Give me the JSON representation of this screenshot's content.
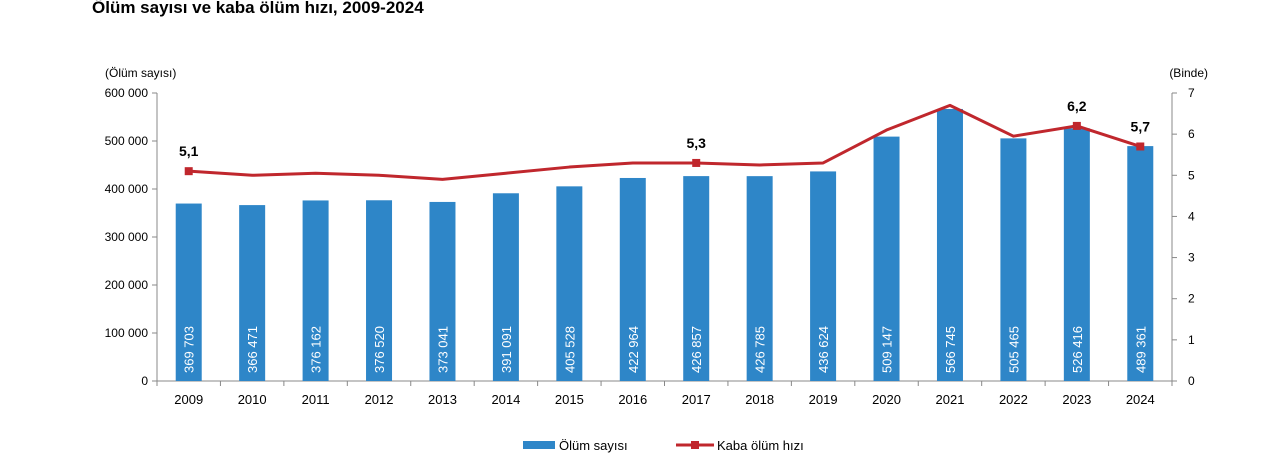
{
  "chart_data": {
    "type": "bar",
    "title": "Ölüm sayısı ve kaba ölüm hızı, 2009-2024",
    "categories": [
      "2009",
      "2010",
      "2011",
      "2012",
      "2013",
      "2014",
      "2015",
      "2016",
      "2017",
      "2018",
      "2019",
      "2020",
      "2021",
      "2022",
      "2023",
      "2024"
    ],
    "y_left": {
      "label": "(Ölüm sayısı)",
      "ylim": [
        0,
        600000
      ],
      "ticks": [
        {
          "value": 0,
          "label": "0"
        },
        {
          "value": 100000,
          "label": "100 000"
        },
        {
          "value": 200000,
          "label": "200 000"
        },
        {
          "value": 300000,
          "label": "300 000"
        },
        {
          "value": 400000,
          "label": "400 000"
        },
        {
          "value": 500000,
          "label": "500 000"
        },
        {
          "value": 600000,
          "label": "600 000"
        }
      ]
    },
    "y_right": {
      "label": "(Binde)",
      "ylim": [
        0,
        7
      ],
      "ticks": [
        {
          "value": 0,
          "label": "0"
        },
        {
          "value": 1,
          "label": "1"
        },
        {
          "value": 2,
          "label": "2"
        },
        {
          "value": 3,
          "label": "3"
        },
        {
          "value": 4,
          "label": "4"
        },
        {
          "value": 5,
          "label": "5"
        },
        {
          "value": 6,
          "label": "6"
        },
        {
          "value": 7,
          "label": "7"
        }
      ]
    },
    "series": [
      {
        "name": "Ölüm sayısı",
        "type": "bar",
        "axis": "left",
        "color": "#2e86c8",
        "values": [
          369703,
          366471,
          376162,
          376520,
          373041,
          391091,
          405528,
          422964,
          426857,
          426785,
          436624,
          509147,
          566745,
          505465,
          526416,
          489361
        ],
        "labels": [
          "369 703",
          "366 471",
          "376 162",
          "376 520",
          "373 041",
          "391 091",
          "405 528",
          "422 964",
          "426 857",
          "426 785",
          "436 624",
          "509 147",
          "566 745",
          "505 465",
          "526 416",
          "489 361"
        ]
      },
      {
        "name": "Kaba ölüm hızı",
        "type": "line",
        "axis": "right",
        "color": "#c0272d",
        "values": [
          5.1,
          5.0,
          5.05,
          5.0,
          4.9,
          5.05,
          5.2,
          5.3,
          5.3,
          5.25,
          5.3,
          6.1,
          6.7,
          5.95,
          6.2,
          5.7
        ],
        "markers": [
          {
            "index": 0,
            "label": "5,1"
          },
          {
            "index": 8,
            "label": "5,3"
          },
          {
            "index": 14,
            "label": "6,2"
          },
          {
            "index": 15,
            "label": "5,7"
          }
        ]
      }
    ],
    "legend": {
      "placement": "bottom-center",
      "bar_label": "Ölüm sayısı",
      "line_label": "Kaba ölüm hızı"
    },
    "grid": false
  }
}
